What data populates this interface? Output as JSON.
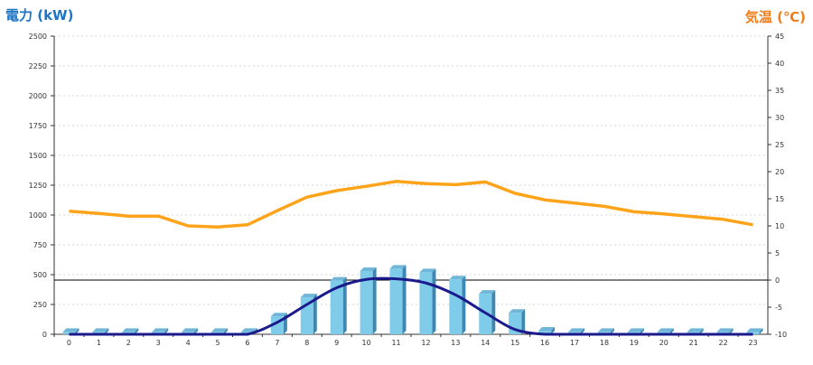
{
  "chart_data": {
    "type": "bar",
    "categories": [
      "0",
      "1",
      "2",
      "3",
      "4",
      "5",
      "6",
      "7",
      "8",
      "9",
      "10",
      "11",
      "12",
      "13",
      "14",
      "15",
      "16",
      "17",
      "18",
      "19",
      "20",
      "21",
      "22",
      "23"
    ],
    "series": [
      {
        "type": "bar",
        "axis": "left",
        "color": "#7ecbea",
        "values": [
          20,
          20,
          20,
          20,
          20,
          20,
          20,
          150,
          310,
          450,
          530,
          550,
          520,
          460,
          340,
          180,
          30,
          20,
          20,
          20,
          20,
          20,
          20,
          20
        ]
      },
      {
        "type": "line",
        "axis": "left",
        "color": "#1a1a8c",
        "values": [
          0,
          0,
          0,
          0,
          0,
          0,
          0,
          100,
          250,
          390,
          460,
          465,
          430,
          330,
          180,
          40,
          0,
          0,
          0,
          0,
          0,
          0,
          0,
          0
        ]
      },
      {
        "type": "line",
        "axis": "right",
        "color": "#ffa31a",
        "values": [
          12.7,
          12.3,
          11.8,
          11.8,
          10.0,
          9.8,
          10.2,
          12.8,
          15.3,
          16.5,
          17.3,
          18.2,
          17.8,
          17.6,
          18.1,
          16.0,
          14.8,
          14.2,
          13.6,
          12.6,
          12.2,
          11.7,
          11.2,
          10.2
        ]
      }
    ],
    "ylabel": "電力 (kW)",
    "ylabel_right": "気温 (℃)",
    "ylim": [
      0,
      2500
    ],
    "ylim_right": [
      -10,
      45
    ],
    "yticks": [
      "0",
      "250",
      "500",
      "750",
      "1000",
      "1250",
      "1500",
      "1750",
      "2000",
      "2250",
      "2500"
    ],
    "yticks_right": [
      "-10",
      "-5",
      "0",
      "5",
      "10",
      "15",
      "20",
      "25",
      "30",
      "35",
      "40",
      "45"
    ],
    "grid": true,
    "reference_line_right": 0
  }
}
